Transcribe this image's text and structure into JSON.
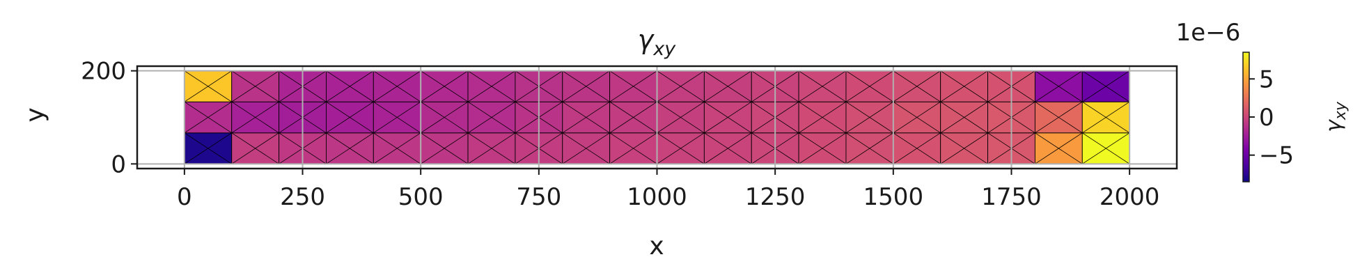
{
  "chart_data": {
    "type": "heatmap",
    "title": "γ",
    "title_sub": "xy",
    "xlabel": "x",
    "ylabel": "y",
    "xlim": [
      -100,
      2100
    ],
    "ylim": [
      -10,
      210
    ],
    "xticks": [
      0,
      250,
      500,
      750,
      1000,
      1250,
      1500,
      1750,
      2000
    ],
    "yticks": [
      0,
      200
    ],
    "grid": true,
    "domain": {
      "x": [
        0,
        2000
      ],
      "y": [
        0,
        200
      ]
    },
    "mesh": {
      "nx": 20,
      "ny": 3,
      "element": "crossed-quad (4 triangles per cell)"
    },
    "colormap": "plasma",
    "clim": [
      -8.5e-06,
      8.5e-06
    ],
    "colorbar": {
      "label": "γ",
      "label_sub": "xy",
      "offset_text": "1e−6",
      "ticks": [
        5,
        0,
        -5
      ],
      "tick_labels": [
        "5",
        "0",
        "−5"
      ],
      "scale": 1e-06
    },
    "rows_bottom_to_top": [
      [
        -8.0,
        -0.5,
        -0.8,
        -0.9,
        -0.9,
        -0.9,
        -0.7,
        -0.6,
        -0.5,
        -0.3,
        -0.2,
        -0.1,
        0.0,
        0.3,
        0.5,
        0.7,
        0.9,
        1.0,
        4.5,
        8.5
      ],
      [
        -1.5,
        -2.2,
        -2.4,
        -2.3,
        -2.1,
        -1.6,
        -1.5,
        -1.1,
        -0.7,
        -0.6,
        -0.4,
        -0.2,
        0.0,
        0.3,
        0.5,
        0.8,
        0.9,
        1.1,
        2.0,
        7.0
      ],
      [
        6.5,
        -1.1,
        -2.0,
        -2.1,
        -2.0,
        -1.7,
        -1.5,
        -1.2,
        -1.0,
        -0.8,
        -0.5,
        -0.4,
        -0.2,
        0.1,
        0.3,
        0.5,
        0.7,
        0.7,
        -3.5,
        -5.0
      ]
    ]
  }
}
